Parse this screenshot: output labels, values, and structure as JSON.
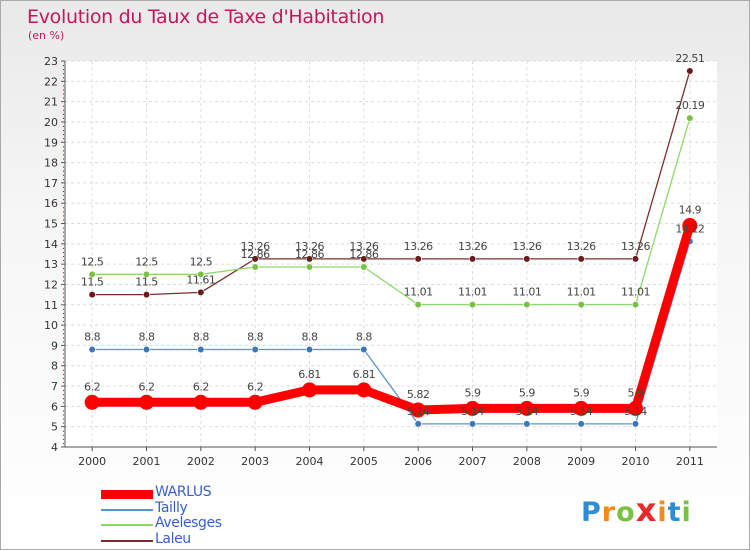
{
  "title": "Evolution du Taux de Taxe d'Habitation",
  "units": "(en %)",
  "logo": {
    "letters": [
      "P",
      "r",
      "o",
      "x",
      "i",
      "t",
      "i"
    ],
    "colors": [
      "#2e8bd6",
      "#f08a1c",
      "#7ac143",
      "#e8282b",
      "#f08a1c",
      "#2e8bd6",
      "#7ac143"
    ]
  },
  "chart_data": {
    "type": "line",
    "title": "Evolution du Taux de Taxe d'Habitation",
    "ylabel": "(en %)",
    "xlabel": "",
    "x": [
      "2000",
      "2001",
      "2002",
      "2003",
      "2004",
      "2005",
      "2006",
      "2007",
      "2008",
      "2009",
      "2010",
      "2011"
    ],
    "ylim": [
      4,
      23
    ],
    "yticks": [
      "4",
      "5",
      "6",
      "7",
      "8",
      "9",
      "10",
      "11",
      "12",
      "13",
      "14",
      "15",
      "16",
      "17",
      "18",
      "19",
      "20",
      "21",
      "22",
      "23"
    ],
    "legend_position": "bottom-left",
    "series": [
      {
        "name": "Laleu",
        "color": "#7b2c2c",
        "marker": "#6b1a1a",
        "values": [
          11.5,
          11.5,
          11.61,
          13.26,
          13.26,
          13.26,
          13.26,
          13.26,
          13.26,
          13.26,
          13.26,
          22.51
        ],
        "labels": [
          "11.5",
          "11.5",
          "11.61",
          "13.26",
          "13.26",
          "13.26",
          "13.26",
          "13.26",
          "13.26",
          "13.26",
          "13.26",
          "22.51"
        ]
      },
      {
        "name": "Avelesges",
        "color": "#8bd96b",
        "marker": "#7ac143",
        "values": [
          12.5,
          12.5,
          12.5,
          12.86,
          12.86,
          12.86,
          11.01,
          11.01,
          11.01,
          11.01,
          11.01,
          20.19
        ],
        "labels": [
          "12.5",
          "12.5",
          "12.5",
          "12.86",
          "12.86",
          "12.86",
          "11.01",
          "11.01",
          "11.01",
          "11.01",
          "11.01",
          "20.19"
        ]
      },
      {
        "name": "Tailly",
        "color": "#5a95c8",
        "marker": "#3a78b8",
        "values": [
          8.8,
          8.8,
          8.8,
          8.8,
          8.8,
          8.8,
          5.14,
          5.14,
          5.14,
          5.14,
          5.14,
          14.12
        ],
        "labels": [
          "8.8",
          "8.8",
          "8.8",
          "8.8",
          "8.8",
          "8.8",
          "5.14",
          "5.14",
          "5.14",
          "5.14",
          "5.14",
          "14.12"
        ]
      },
      {
        "name": "WARLUS",
        "color": "#ff0000",
        "marker": "#ff0000",
        "values": [
          6.2,
          6.2,
          6.2,
          6.2,
          6.81,
          6.81,
          5.82,
          5.9,
          5.9,
          5.9,
          5.9,
          14.9
        ],
        "labels": [
          "6.2",
          "6.2",
          "6.2",
          "6.2",
          "6.81",
          "6.81",
          "5.82",
          "5.9",
          "5.9",
          "5.9",
          "5.9",
          "14.9"
        ]
      }
    ]
  }
}
